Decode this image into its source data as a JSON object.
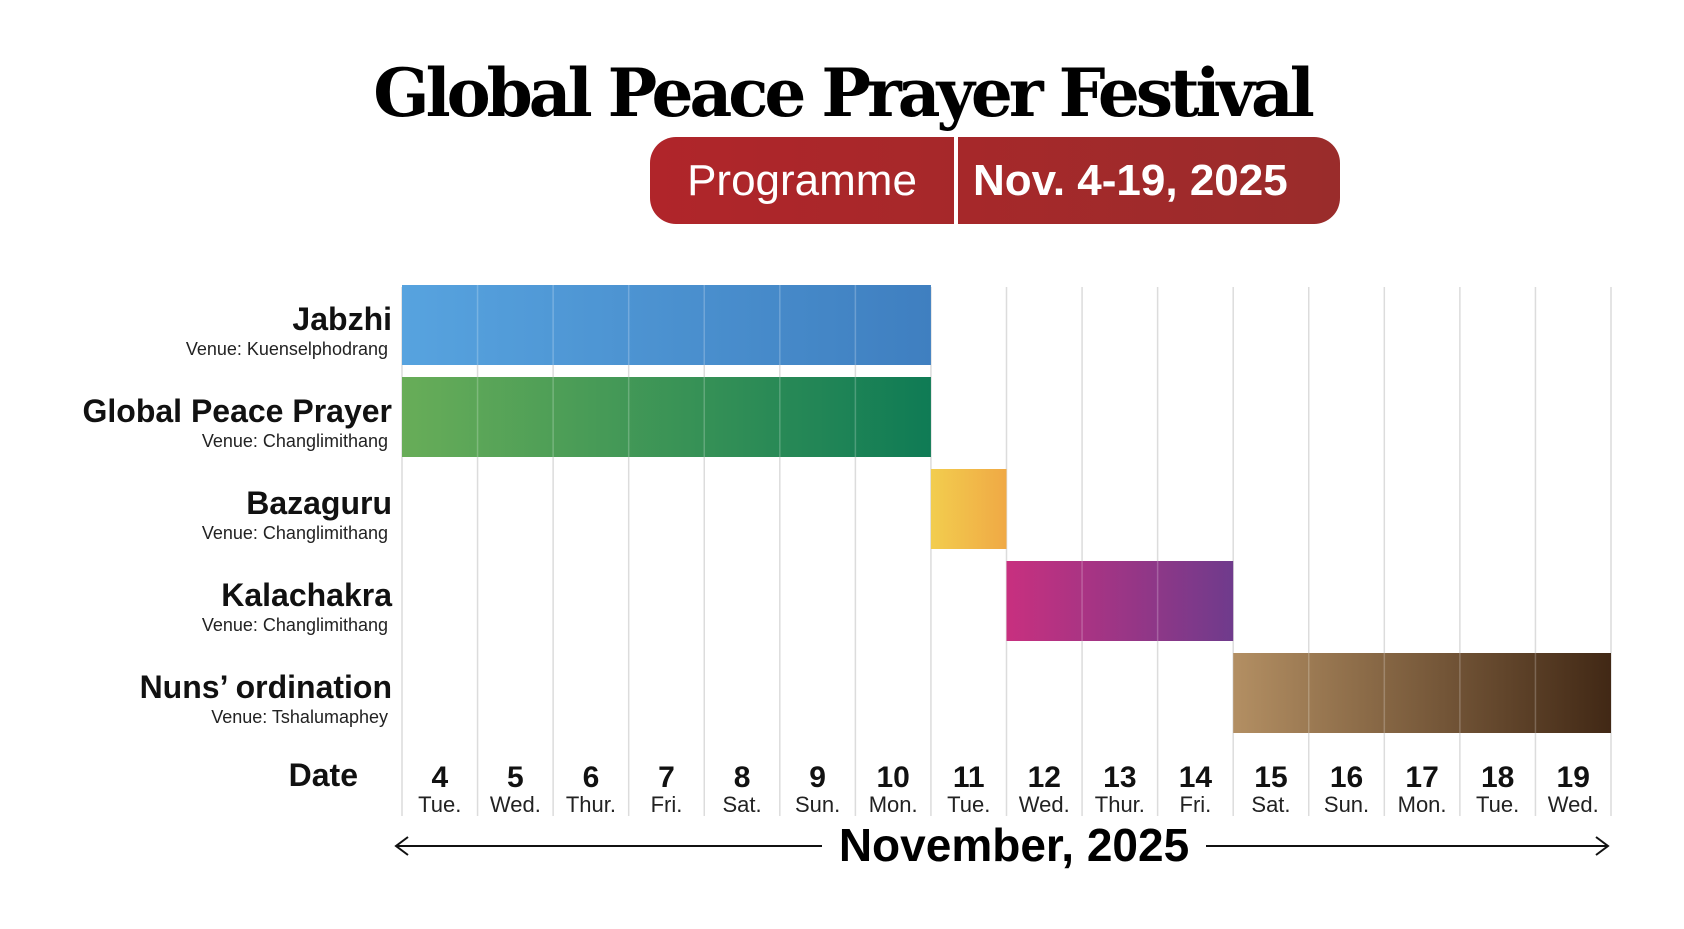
{
  "header": {
    "title": "Global Peace Prayer Festival",
    "badge_left": "Programme",
    "badge_right": "Nov. 4-19, 2025"
  },
  "chart_data": {
    "type": "gantt",
    "title": "Global Peace Prayer Festival",
    "subtitle": "Programme Nov. 4-19, 2025",
    "x_header": "Date",
    "xlabel": "November, 2025",
    "days": [
      {
        "day": "4",
        "weekday": "Tue."
      },
      {
        "day": "5",
        "weekday": "Wed."
      },
      {
        "day": "6",
        "weekday": "Thur."
      },
      {
        "day": "7",
        "weekday": "Fri."
      },
      {
        "day": "8",
        "weekday": "Sat."
      },
      {
        "day": "9",
        "weekday": "Sun."
      },
      {
        "day": "10",
        "weekday": "Mon."
      },
      {
        "day": "11",
        "weekday": "Tue."
      },
      {
        "day": "12",
        "weekday": "Wed."
      },
      {
        "day": "13",
        "weekday": "Thur."
      },
      {
        "day": "14",
        "weekday": "Fri."
      },
      {
        "day": "15",
        "weekday": "Sat."
      },
      {
        "day": "16",
        "weekday": "Sun."
      },
      {
        "day": "17",
        "weekday": "Mon."
      },
      {
        "day": "18",
        "weekday": "Tue."
      },
      {
        "day": "19",
        "weekday": "Wed."
      }
    ],
    "events": [
      {
        "name": "Jabzhi",
        "venue": "Venue: Kuenselphodrang",
        "start": 4,
        "end": 10,
        "colors": [
          "#57a3df",
          "#3f7fc0"
        ]
      },
      {
        "name": "Global Peace Prayer",
        "venue": "Venue: Changlimithang",
        "start": 4,
        "end": 10,
        "colors": [
          "#68ad58",
          "#0f7b55"
        ]
      },
      {
        "name": "Bazaguru",
        "venue": "Venue: Changlimithang",
        "start": 11,
        "end": 11,
        "colors": [
          "#f2cd4e",
          "#f0a945"
        ]
      },
      {
        "name": "Kalachakra",
        "venue": "Venue: Changlimithang",
        "start": 12,
        "end": 14,
        "colors": [
          "#c8307f",
          "#6f3b8c"
        ]
      },
      {
        "name": "Nuns’ ordination",
        "venue": "Venue: Tshalumaphey",
        "start": 15,
        "end": 19,
        "colors": [
          "#b38f63",
          "#412815"
        ]
      }
    ]
  }
}
